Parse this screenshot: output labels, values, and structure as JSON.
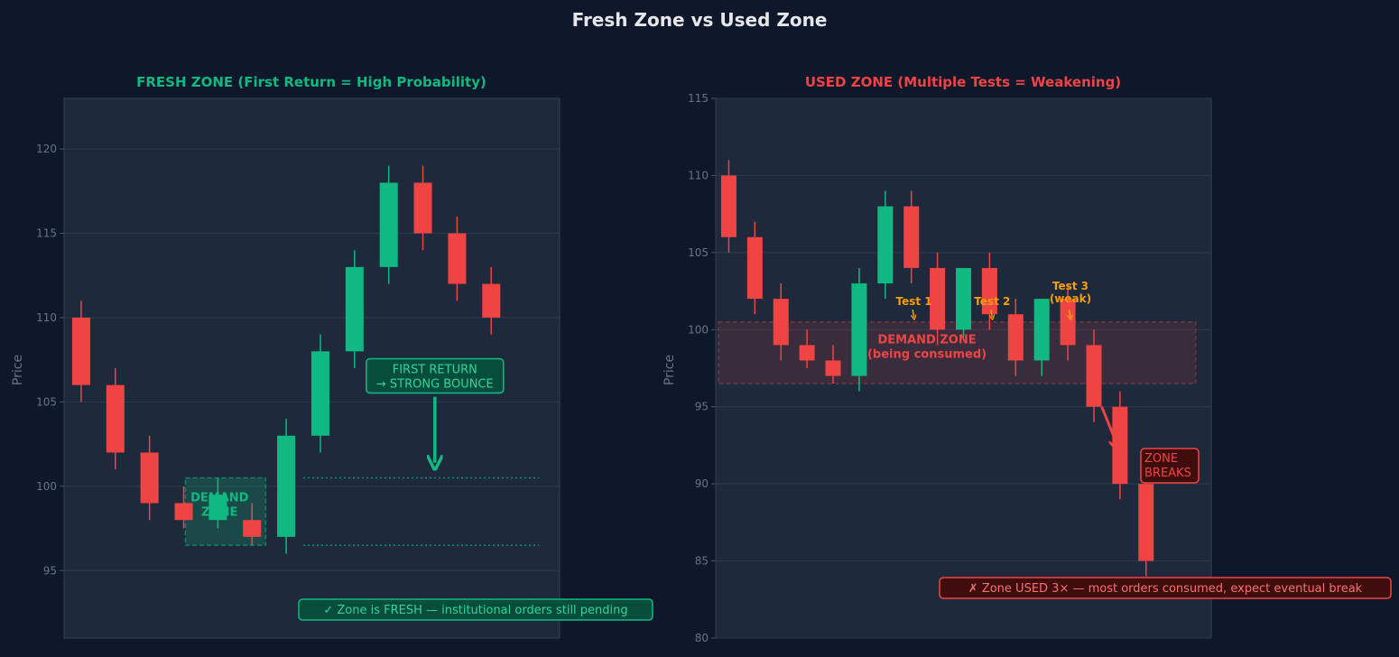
{
  "title": "Fresh Zone vs Used Zone",
  "colors": {
    "background": "#0f172a",
    "panel": "#1e293b",
    "bull": "#10b981",
    "bear": "#ef4444",
    "test_label": "#f59e0b",
    "axis_text": "#64748b"
  },
  "chart_data": [
    {
      "type": "candlestick",
      "title": "FRESH ZONE  (First Return = High Probability)",
      "title_color": "#10b981",
      "ylabel": "Price",
      "ylim": [
        91,
        123
      ],
      "yticks": [
        95,
        100,
        105,
        110,
        115,
        120
      ],
      "grid": true,
      "candles": [
        {
          "x": 1,
          "open": 110,
          "high": 111,
          "low": 105,
          "close": 106
        },
        {
          "x": 2,
          "open": 106,
          "high": 107,
          "low": 101,
          "close": 102
        },
        {
          "x": 3,
          "open": 102,
          "high": 103,
          "low": 98,
          "close": 99
        },
        {
          "x": 4,
          "open": 99,
          "high": 100,
          "low": 97.5,
          "close": 98
        },
        {
          "x": 5,
          "open": 98,
          "high": 100.5,
          "low": 97.5,
          "close": 99.5
        },
        {
          "x": 6,
          "open": 98,
          "high": 99,
          "low": 96.5,
          "close": 97
        },
        {
          "x": 7,
          "open": 97,
          "high": 104,
          "low": 96,
          "close": 103
        },
        {
          "x": 8,
          "open": 103,
          "high": 109,
          "low": 102,
          "close": 108
        },
        {
          "x": 9,
          "open": 108,
          "high": 114,
          "low": 107,
          "close": 113
        },
        {
          "x": 10,
          "open": 113,
          "high": 119,
          "low": 112,
          "close": 118
        },
        {
          "x": 11,
          "open": 118,
          "high": 119,
          "low": 114,
          "close": 115
        },
        {
          "x": 12,
          "open": 115,
          "high": 116,
          "low": 111,
          "close": 112
        },
        {
          "x": 13,
          "open": 112,
          "high": 113,
          "low": 109,
          "close": 110
        }
      ],
      "zone": {
        "low": 96.5,
        "high": 100.5,
        "label": "DEMAND\nZONE"
      },
      "annotations": [
        {
          "text": "FIRST RETURN\n→ STRONG BOUNCE"
        },
        {
          "text": "✓  Zone is FRESH — institutional orders still pending"
        }
      ]
    },
    {
      "type": "candlestick",
      "title": "USED ZONE  (Multiple Tests = Weakening)",
      "title_color": "#ef4444",
      "ylabel": "Price",
      "ylim": [
        80,
        115
      ],
      "yticks": [
        80,
        85,
        90,
        95,
        100,
        105,
        110,
        115
      ],
      "grid": true,
      "candles": [
        {
          "x": 1,
          "open": 110,
          "high": 111,
          "low": 105,
          "close": 106
        },
        {
          "x": 2,
          "open": 106,
          "high": 107,
          "low": 101,
          "close": 102
        },
        {
          "x": 3,
          "open": 102,
          "high": 103,
          "low": 98,
          "close": 99
        },
        {
          "x": 4,
          "open": 99,
          "high": 100,
          "low": 97.5,
          "close": 98
        },
        {
          "x": 5,
          "open": 98,
          "high": 99,
          "low": 96.5,
          "close": 97
        },
        {
          "x": 6,
          "open": 97,
          "high": 104,
          "low": 96,
          "close": 103
        },
        {
          "x": 7,
          "open": 103,
          "high": 109,
          "low": 102,
          "close": 108
        },
        {
          "x": 8,
          "open": 108,
          "high": 109,
          "low": 103,
          "close": 104
        },
        {
          "x": 9,
          "open": 104,
          "high": 105,
          "low": 99,
          "close": 100
        },
        {
          "x": 10,
          "open": 100,
          "high": 104,
          "low": 99.5,
          "close": 104
        },
        {
          "x": 11,
          "open": 104,
          "high": 105,
          "low": 100,
          "close": 101
        },
        {
          "x": 12,
          "open": 101,
          "high": 102,
          "low": 97,
          "close": 98
        },
        {
          "x": 13,
          "open": 98,
          "high": 102,
          "low": 97,
          "close": 102
        },
        {
          "x": 14,
          "open": 102,
          "high": 103,
          "low": 98,
          "close": 99
        },
        {
          "x": 15,
          "open": 99,
          "high": 100,
          "low": 94,
          "close": 95
        },
        {
          "x": 16,
          "open": 95,
          "high": 96,
          "low": 89,
          "close": 90
        },
        {
          "x": 17,
          "open": 90,
          "high": 91,
          "low": 84,
          "close": 85
        }
      ],
      "zone": {
        "low": 96.5,
        "high": 100.5,
        "label": "DEMAND ZONE\n(being consumed)"
      },
      "tests": [
        {
          "label": "Test 1",
          "x": 8.1,
          "y": 101
        },
        {
          "label": "Test 2",
          "x": 11.1,
          "y": 101
        },
        {
          "label": "Test 3\n(weak)",
          "x": 14.1,
          "y": 101
        }
      ],
      "annotations": [
        {
          "text": "ZONE\nBREAKS"
        },
        {
          "text": "✗  Zone USED 3× — most orders consumed, expect eventual break"
        }
      ]
    }
  ]
}
